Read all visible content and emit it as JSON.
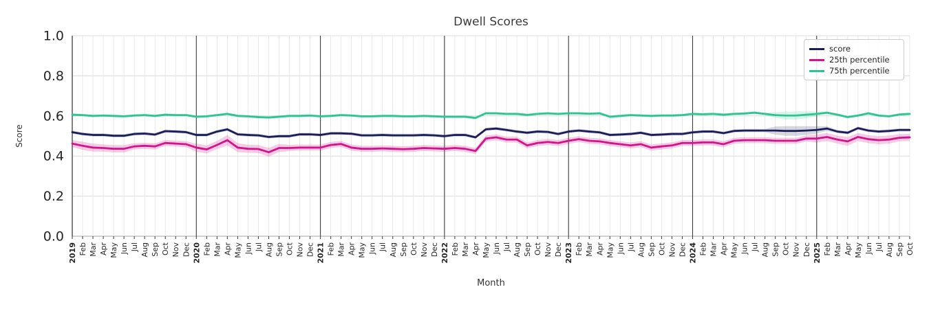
{
  "title": "Dwell Scores",
  "axes": {
    "xlabel": "Month",
    "ylabel": "Score",
    "yticks": [
      "0.0",
      "0.2",
      "0.4",
      "0.6",
      "0.8",
      "1.0"
    ],
    "ylim": [
      0.0,
      1.0
    ],
    "grid": true,
    "tick_label_color": "#262626"
  },
  "legend": {
    "position": "upper-right",
    "border_color": "#cccccc"
  },
  "chart_data": {
    "type": "line",
    "x_labels": [
      "2019",
      "Feb",
      "Mar",
      "Apr",
      "May",
      "Jun",
      "Jul",
      "Aug",
      "Sep",
      "Oct",
      "Nov",
      "Dec",
      "2020",
      "Feb",
      "Mar",
      "Apr",
      "May",
      "Jun",
      "Jul",
      "Aug",
      "Sep",
      "Oct",
      "Nov",
      "Dec",
      "2021",
      "Feb",
      "Mar",
      "Apr",
      "May",
      "Jun",
      "Jul",
      "Aug",
      "Sep",
      "Oct",
      "Nov",
      "Dec",
      "2022",
      "Feb",
      "Mar",
      "Apr",
      "May",
      "Jun",
      "Jul",
      "Aug",
      "Sep",
      "Oct",
      "Nov",
      "Dec",
      "2023",
      "Feb",
      "Mar",
      "Apr",
      "May",
      "Jun",
      "Jul",
      "Aug",
      "Sep",
      "Oct",
      "Nov",
      "Dec",
      "2024",
      "Feb",
      "Mar",
      "Apr",
      "May",
      "Jun",
      "Jul",
      "Aug",
      "Sep",
      "Oct",
      "Nov",
      "Dec",
      "2025",
      "Feb",
      "Mar",
      "Apr",
      "May",
      "Jun",
      "Jul",
      "Aug",
      "Sep",
      "Oct"
    ],
    "series": [
      {
        "name": "score",
        "color": "#1c1c57",
        "values": [
          0.519,
          0.51,
          0.505,
          0.505,
          0.501,
          0.501,
          0.51,
          0.512,
          0.507,
          0.524,
          0.522,
          0.519,
          0.505,
          0.505,
          0.522,
          0.533,
          0.508,
          0.505,
          0.503,
          0.495,
          0.499,
          0.499,
          0.508,
          0.508,
          0.505,
          0.513,
          0.513,
          0.511,
          0.503,
          0.503,
          0.505,
          0.503,
          0.503,
          0.503,
          0.505,
          0.503,
          0.499,
          0.505,
          0.505,
          0.493,
          0.533,
          0.537,
          0.53,
          0.522,
          0.516,
          0.522,
          0.52,
          0.51,
          0.522,
          0.527,
          0.522,
          0.518,
          0.505,
          0.507,
          0.51,
          0.516,
          0.505,
          0.507,
          0.51,
          0.51,
          0.518,
          0.522,
          0.522,
          0.514,
          0.525,
          0.527,
          0.527,
          0.527,
          0.527,
          0.525,
          0.525,
          0.527,
          0.53,
          0.537,
          0.522,
          0.516,
          0.539,
          0.527,
          0.522,
          0.525,
          0.53,
          0.53
        ],
        "band": {
          "default": 0.008,
          "overrides": {
            "68": 0.02,
            "69": 0.024,
            "70": 0.024,
            "71": 0.022,
            "72": 0.018,
            "73": 0.012
          }
        }
      },
      {
        "name": "25th percentile",
        "color": "#d2138a",
        "values": [
          0.462,
          0.451,
          0.442,
          0.44,
          0.436,
          0.436,
          0.448,
          0.451,
          0.448,
          0.465,
          0.462,
          0.459,
          0.442,
          0.433,
          0.455,
          0.479,
          0.442,
          0.436,
          0.435,
          0.419,
          0.44,
          0.44,
          0.442,
          0.442,
          0.442,
          0.455,
          0.46,
          0.442,
          0.436,
          0.436,
          0.438,
          0.436,
          0.434,
          0.436,
          0.44,
          0.438,
          0.436,
          0.44,
          0.436,
          0.425,
          0.487,
          0.493,
          0.482,
          0.482,
          0.453,
          0.465,
          0.47,
          0.465,
          0.476,
          0.484,
          0.476,
          0.473,
          0.465,
          0.459,
          0.453,
          0.459,
          0.442,
          0.448,
          0.453,
          0.465,
          0.465,
          0.468,
          0.468,
          0.459,
          0.476,
          0.479,
          0.479,
          0.479,
          0.476,
          0.476,
          0.476,
          0.487,
          0.487,
          0.495,
          0.482,
          0.473,
          0.495,
          0.484,
          0.479,
          0.482,
          0.491,
          0.493
        ],
        "band": {
          "default": 0.015,
          "overrides": {
            "0": 0.018,
            "1": 0.02,
            "2": 0.02,
            "3": 0.018,
            "4": 0.018,
            "5": 0.018,
            "12": 0.02,
            "13": 0.02,
            "14": 0.02,
            "15": 0.026,
            "16": 0.022,
            "17": 0.02,
            "18": 0.02,
            "19": 0.022,
            "20": 0.02,
            "72": 0.02,
            "73": 0.02,
            "74": 0.02,
            "75": 0.022,
            "76": 0.02,
            "77": 0.02,
            "78": 0.02,
            "79": 0.02,
            "80": 0.018,
            "81": 0.018
          }
        }
      },
      {
        "name": "75th percentile",
        "color": "#2ec492",
        "values": [
          0.606,
          0.604,
          0.6,
          0.602,
          0.6,
          0.598,
          0.602,
          0.604,
          0.6,
          0.606,
          0.604,
          0.604,
          0.596,
          0.598,
          0.604,
          0.61,
          0.6,
          0.598,
          0.594,
          0.592,
          0.596,
          0.6,
          0.6,
          0.602,
          0.598,
          0.6,
          0.604,
          0.602,
          0.598,
          0.598,
          0.6,
          0.6,
          0.598,
          0.598,
          0.6,
          0.598,
          0.596,
          0.596,
          0.596,
          0.59,
          0.613,
          0.613,
          0.61,
          0.61,
          0.605,
          0.61,
          0.613,
          0.61,
          0.613,
          0.613,
          0.611,
          0.613,
          0.596,
          0.6,
          0.604,
          0.602,
          0.6,
          0.602,
          0.602,
          0.604,
          0.61,
          0.608,
          0.61,
          0.606,
          0.61,
          0.612,
          0.616,
          0.61,
          0.604,
          0.602,
          0.602,
          0.606,
          0.61,
          0.616,
          0.606,
          0.594,
          0.602,
          0.613,
          0.602,
          0.598,
          0.607,
          0.61
        ],
        "band": {
          "default": 0.007,
          "overrides": {
            "68": 0.014,
            "69": 0.02,
            "70": 0.02,
            "71": 0.018,
            "72": 0.012
          }
        }
      }
    ]
  }
}
